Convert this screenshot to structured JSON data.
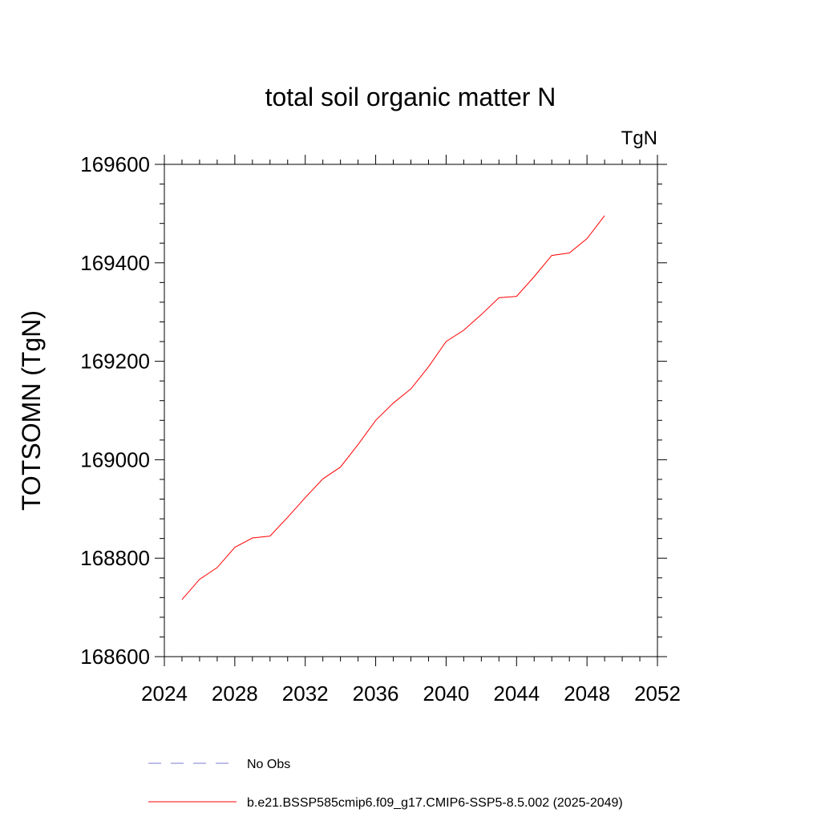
{
  "chart_data": {
    "type": "line",
    "title": "total soil organic matter N",
    "units_label": "TgN",
    "ylabel": "TOTSOMN  (TgN)",
    "xlabel": "",
    "xlim": [
      2024,
      2052
    ],
    "ylim": [
      168600,
      169600
    ],
    "x_ticks": [
      2024,
      2028,
      2032,
      2036,
      2040,
      2044,
      2048,
      2052
    ],
    "y_ticks": [
      168600,
      168800,
      169000,
      169200,
      169400,
      169600
    ],
    "grid": false,
    "legend_position": "bottom",
    "series": [
      {
        "name": "b.e21.BSSP585cmip6.f09_g17.CMIP6-SSP5-8.5.002 (2025-2049)",
        "color": "#ff0000",
        "style": "solid",
        "x": [
          2025,
          2026,
          2027,
          2028,
          2029,
          2030,
          2031,
          2032,
          2033,
          2034,
          2035,
          2036,
          2037,
          2038,
          2039,
          2040,
          2041,
          2042,
          2043,
          2044,
          2045,
          2046,
          2047,
          2048,
          2049
        ],
        "values": [
          168716,
          168757,
          168781,
          168822,
          168841,
          168845,
          168883,
          168923,
          168961,
          168985,
          169031,
          169080,
          169115,
          169144,
          169189,
          169240,
          169263,
          169295,
          169329,
          169332,
          169372,
          169415,
          169420,
          169449,
          169496
        ]
      },
      {
        "name": "No Obs",
        "color": "#7b7bd0",
        "style": "dashed",
        "x": [],
        "values": []
      }
    ]
  }
}
